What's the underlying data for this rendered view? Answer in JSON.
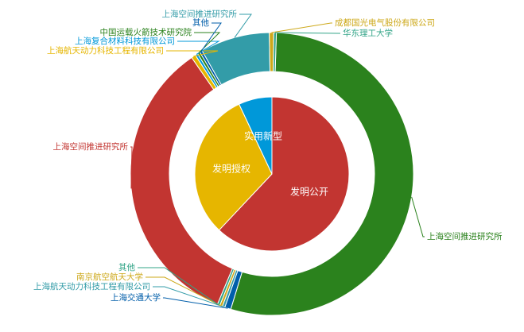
{
  "chart_data": [
    {
      "type": "pie",
      "ring": "inner",
      "slices": [
        {
          "label": "发明公开",
          "value": 62,
          "color": "#c23531"
        },
        {
          "label": "发明授权",
          "value": 31,
          "color": "#e6b600"
        },
        {
          "label": "实用新型",
          "value": 7,
          "color": "#0098d9"
        }
      ]
    },
    {
      "type": "pie",
      "ring": "outer",
      "slices": [
        {
          "label": "上海空间推进研究所",
          "value": 54.2,
          "color": "#2b821d",
          "label_color": "#2b821d"
        },
        {
          "label": "上海交通大学",
          "value": 0.7,
          "color": "#005eaa",
          "label_color": "#005eaa"
        },
        {
          "label": "上海航天动力科技工程有限公司",
          "value": 0.3,
          "color": "#339ca8",
          "label_color": "#339ca8"
        },
        {
          "label": "南京航空航天大学",
          "value": 0.3,
          "color": "#cda819",
          "label_color": "#cda819"
        },
        {
          "label": "其他",
          "value": 0.3,
          "color": "#32a487",
          "label_color": "#32a487"
        },
        {
          "label": "上海空间推进研究所",
          "value": 34.1,
          "color": "#c23531",
          "label_color": "#c23531"
        },
        {
          "label": "上海航天动力科技工程有限公司",
          "value": 0.5,
          "color": "#e6b600",
          "label_color": "#e6b600"
        },
        {
          "label": "上海复合材料科技有限公司",
          "value": 0.3,
          "color": "#0098d9",
          "label_color": "#0098d9"
        },
        {
          "label": "中国运载火箭技术研究院",
          "value": 0.3,
          "color": "#2b821d",
          "label_color": "#2b821d"
        },
        {
          "label": "其他",
          "value": 0.3,
          "color": "#005eaa",
          "label_color": "#005eaa"
        },
        {
          "label": "上海空间推进研究所",
          "value": 7.9,
          "color": "#339ca8",
          "label_color": "#339ca8"
        },
        {
          "label": "成都国光电气股份有限公司",
          "value": 0.5,
          "color": "#cda819",
          "label_color": "#cda819"
        },
        {
          "label": "华东理工大学",
          "value": 0.3,
          "color": "#32a487",
          "label_color": "#32a487"
        }
      ]
    }
  ]
}
